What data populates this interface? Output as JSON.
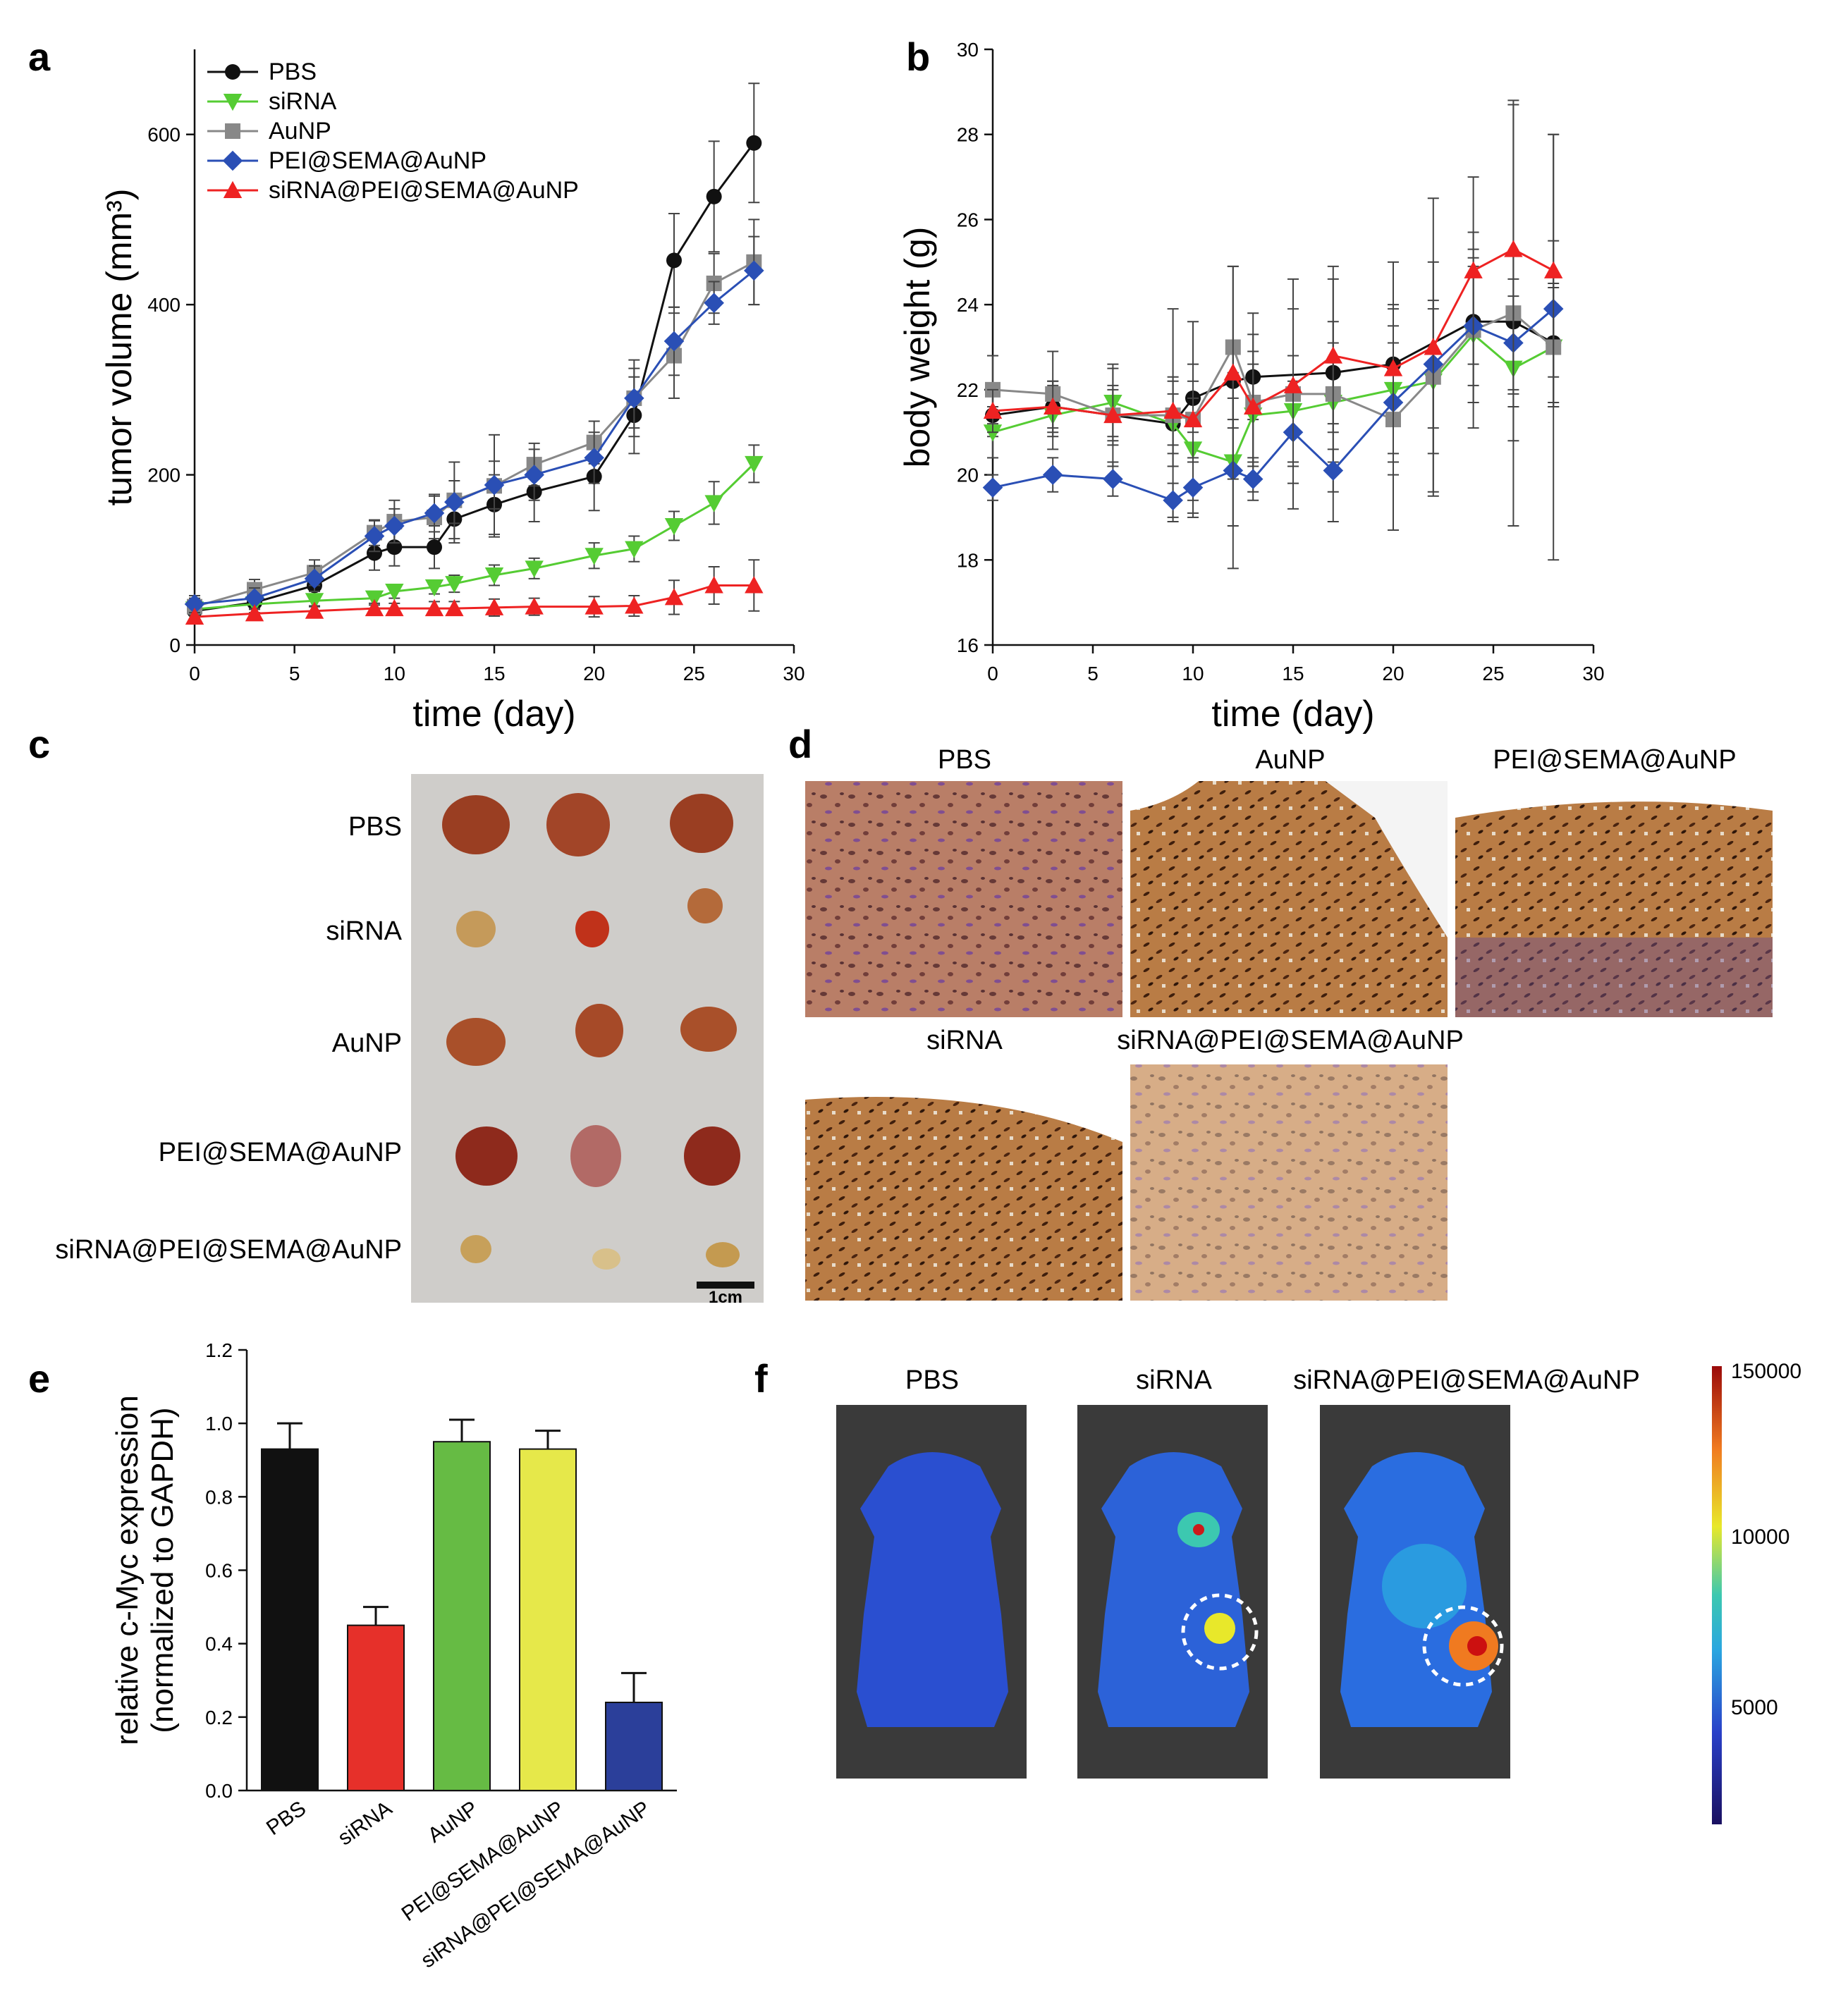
{
  "panel_letters": {
    "a": "a",
    "b": "b",
    "c": "c",
    "d": "d",
    "e": "e",
    "f": "f"
  },
  "colors": {
    "PBS": "#111111",
    "siRNA": "#55cc33",
    "AuNP": "#888888",
    "PEI@SEMA@AuNP": "#2a4fb5",
    "siRNA@PEI@SEMA@AuNP": "#ee2222",
    "bar_fill": [
      "#111111",
      "#e6302a",
      "#66bb44",
      "#e6e84a",
      "#2b3f9a"
    ],
    "tissue_brown": "#b5713a",
    "tissue_purple": "#6d4e8e",
    "tray": "#c9c7c4"
  },
  "chart_data": [
    {
      "id": "a",
      "type": "line",
      "xlabel": "time (day)",
      "ylabel": "tumor volume (mm³)",
      "xlim": [
        0,
        30
      ],
      "ylim": [
        0,
        700
      ],
      "xticks": [
        0,
        5,
        10,
        15,
        20,
        25,
        30
      ],
      "yticks": [
        0,
        200,
        400,
        600
      ],
      "legend_position": "top-left",
      "series": [
        {
          "name": "PBS",
          "marker": "circle",
          "x": [
            0,
            3,
            6,
            9,
            10,
            12,
            13,
            15,
            17,
            20,
            22,
            24,
            26,
            28
          ],
          "y": [
            40,
            50,
            70,
            108,
            115,
            115,
            148,
            165,
            180,
            198,
            270,
            452,
            527,
            590
          ],
          "err": [
            10,
            12,
            15,
            20,
            22,
            25,
            28,
            35,
            35,
            40,
            45,
            55,
            65,
            70
          ]
        },
        {
          "name": "siRNA",
          "marker": "triangle-down",
          "x": [
            0,
            3,
            6,
            9,
            10,
            12,
            13,
            15,
            17,
            20,
            22,
            24,
            26,
            28
          ],
          "y": [
            42,
            48,
            52,
            55,
            63,
            68,
            72,
            82,
            90,
            105,
            113,
            140,
            167,
            213
          ],
          "err": [
            6,
            6,
            7,
            8,
            8,
            8,
            10,
            12,
            12,
            15,
            15,
            17,
            25,
            22
          ]
        },
        {
          "name": "AuNP",
          "marker": "square",
          "x": [
            0,
            3,
            6,
            9,
            10,
            12,
            13,
            15,
            17,
            20,
            22,
            24,
            26,
            28
          ],
          "y": [
            45,
            65,
            85,
            132,
            145,
            150,
            170,
            187,
            212,
            238,
            290,
            340,
            425,
            450
          ],
          "err": [
            10,
            12,
            15,
            15,
            25,
            25,
            45,
            60,
            25,
            25,
            45,
            50,
            35,
            50
          ]
        },
        {
          "name": "PEI@SEMA@AuNP",
          "marker": "diamond",
          "x": [
            0,
            3,
            6,
            9,
            10,
            12,
            13,
            15,
            17,
            20,
            22,
            24,
            26,
            28
          ],
          "y": [
            48,
            55,
            78,
            128,
            140,
            155,
            168,
            188,
            200,
            220,
            290,
            357,
            402,
            440
          ],
          "err": [
            10,
            12,
            15,
            18,
            20,
            22,
            25,
            28,
            30,
            30,
            35,
            40,
            25,
            40
          ]
        },
        {
          "name": "siRNA@PEI@SEMA@AuNP",
          "marker": "triangle-up",
          "x": [
            0,
            3,
            6,
            9,
            10,
            12,
            13,
            15,
            17,
            20,
            22,
            24,
            26,
            28
          ],
          "y": [
            33,
            37,
            40,
            43,
            43,
            43,
            43,
            44,
            45,
            45,
            46,
            56,
            70,
            70
          ],
          "err": [
            5,
            5,
            6,
            6,
            6,
            8,
            8,
            10,
            10,
            12,
            12,
            20,
            22,
            30
          ]
        }
      ]
    },
    {
      "id": "b",
      "type": "line",
      "xlabel": "time (day)",
      "ylabel": "body weight (g)",
      "xlim": [
        0,
        30
      ],
      "ylim": [
        16,
        30
      ],
      "xticks": [
        0,
        5,
        10,
        15,
        20,
        25,
        30
      ],
      "yticks": [
        16,
        18,
        20,
        22,
        24,
        26,
        28,
        30
      ],
      "series": [
        {
          "name": "PBS",
          "marker": "circle",
          "x": [
            0,
            3,
            6,
            9,
            10,
            12,
            13,
            17,
            20,
            24,
            26,
            28
          ],
          "y": [
            21.4,
            21.6,
            21.4,
            21.2,
            21.8,
            22.2,
            22.3,
            22.4,
            22.6,
            23.6,
            23.6,
            23.1
          ],
          "err": [
            0.5,
            0.5,
            0.6,
            0.7,
            0.8,
            0.9,
            1.0,
            1.2,
            1.4,
            1.5,
            1.6,
            1.4
          ]
        },
        {
          "name": "siRNA",
          "marker": "triangle-down",
          "x": [
            0,
            3,
            6,
            9,
            10,
            12,
            13,
            15,
            17,
            20,
            22,
            24,
            26,
            28
          ],
          "y": [
            21.0,
            21.4,
            21.7,
            21.2,
            20.6,
            20.3,
            21.4,
            21.5,
            21.7,
            22.0,
            22.2,
            23.3,
            22.5,
            23.0
          ],
          "err": [
            0.6,
            0.8,
            0.8,
            1.0,
            1.2,
            1.5,
            1.2,
            1.3,
            1.4,
            1.5,
            1.7,
            1.6,
            1.7,
            1.4
          ]
        },
        {
          "name": "AuNP",
          "marker": "square",
          "x": [
            0,
            3,
            6,
            9,
            10,
            12,
            13,
            15,
            17,
            20,
            22,
            24,
            26,
            28
          ],
          "y": [
            22.0,
            21.9,
            21.4,
            21.4,
            21.3,
            23.0,
            21.7,
            21.9,
            21.9,
            21.3,
            22.3,
            23.4,
            23.8,
            23.0
          ],
          "err": [
            0.8,
            1.0,
            1.2,
            2.5,
            2.3,
            1.9,
            2.1,
            2.7,
            3.0,
            2.6,
            2.7,
            2.3,
            5.0,
            5.0
          ]
        },
        {
          "name": "PEI@SEMA@AuNP",
          "marker": "diamond",
          "x": [
            0,
            3,
            6,
            9,
            10,
            12,
            13,
            15,
            17,
            20,
            22,
            24,
            26,
            28
          ],
          "y": [
            19.7,
            20.0,
            19.9,
            19.4,
            19.7,
            20.1,
            19.9,
            21.0,
            20.1,
            21.7,
            22.6,
            23.5,
            23.1,
            23.9
          ],
          "err": [
            0.3,
            0.4,
            0.4,
            0.4,
            0.6,
            2.3,
            0.5,
            1.2,
            0.5,
            1.4,
            1.5,
            1.8,
            1.5,
            1.6
          ]
        },
        {
          "name": "siRNA@PEI@SEMA@AuNP",
          "marker": "triangle-up",
          "x": [
            0,
            3,
            6,
            9,
            10,
            12,
            13,
            15,
            17,
            20,
            22,
            24,
            26,
            28
          ],
          "y": [
            21.5,
            21.6,
            21.4,
            21.5,
            21.3,
            22.4,
            21.6,
            22.1,
            22.8,
            22.5,
            23.0,
            24.8,
            25.3,
            24.8
          ],
          "err": [
            0.5,
            0.6,
            0.7,
            0.8,
            0.9,
            2.5,
            1.3,
            1.8,
            1.8,
            2.5,
            3.5,
            2.2,
            3.4,
            3.2
          ]
        }
      ]
    },
    {
      "id": "e",
      "type": "bar",
      "ylabel_line1": "relative c-Myc expression",
      "ylabel_line2": "(normalized to GAPDH)",
      "categories": [
        "PBS",
        "siRNA",
        "AuNP",
        "PEI@SEMA@AuNP",
        "siRNA@PEI@SEMA@AuNP"
      ],
      "values": [
        0.93,
        0.45,
        0.95,
        0.93,
        0.24
      ],
      "err": [
        0.07,
        0.05,
        0.06,
        0.05,
        0.08
      ],
      "ylim": [
        0,
        1.2
      ],
      "yticks": [
        "0.0",
        "0.2",
        "0.4",
        "0.6",
        "0.8",
        "1.0",
        "1.2"
      ]
    }
  ],
  "panel_c": {
    "rows": [
      "PBS",
      "siRNA",
      "AuNP",
      "PEI@SEMA@AuNP",
      "siRNA@PEI@SEMA@AuNP"
    ],
    "scale_bar": "1cm"
  },
  "panel_d": {
    "labels": [
      "PBS",
      "AuNP",
      "PEI@SEMA@AuNP",
      "siRNA",
      "siRNA@PEI@SEMA@AuNP"
    ]
  },
  "panel_f": {
    "labels": [
      "PBS",
      "siRNA",
      "siRNA@PEI@SEMA@AuNP"
    ],
    "colorbar_ticks": [
      "150000",
      "10000",
      "5000"
    ]
  }
}
